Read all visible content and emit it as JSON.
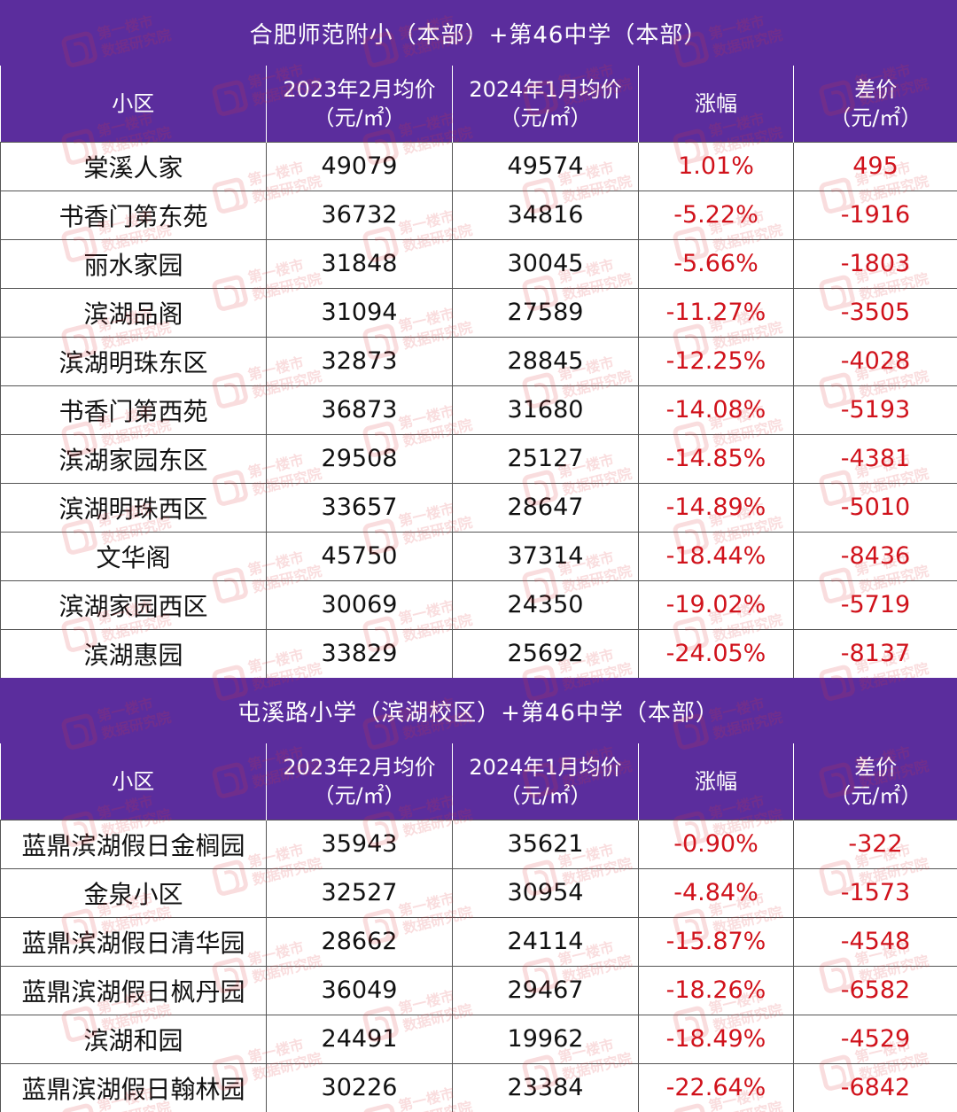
{
  "watermark": {
    "line1": "第一楼市",
    "line2": "数据研究院"
  },
  "colors": {
    "header_bg": "#5b2d9d",
    "decline_text": "#d0121b"
  },
  "columns": [
    {
      "line1": "小区",
      "line2": ""
    },
    {
      "line1": "2023年2月均价",
      "line2": "（元/㎡）"
    },
    {
      "line1": "2024年1月均价",
      "line2": "（元/㎡）"
    },
    {
      "line1": "涨幅",
      "line2": ""
    },
    {
      "line1": "差价",
      "line2": "（元/㎡）"
    }
  ],
  "sections": [
    {
      "title": "合肥师范附小（本部）+第46中学（本部）",
      "rows": [
        {
          "name": "棠溪人家",
          "feb2023": "49079",
          "jan2024": "49574",
          "change": "1.01%",
          "diff": "495"
        },
        {
          "name": "书香门第东苑",
          "feb2023": "36732",
          "jan2024": "34816",
          "change": "-5.22%",
          "diff": "-1916"
        },
        {
          "name": "丽水家园",
          "feb2023": "31848",
          "jan2024": "30045",
          "change": "-5.66%",
          "diff": "-1803"
        },
        {
          "name": "滨湖品阁",
          "feb2023": "31094",
          "jan2024": "27589",
          "change": "-11.27%",
          "diff": "-3505"
        },
        {
          "name": "滨湖明珠东区",
          "feb2023": "32873",
          "jan2024": "28845",
          "change": "-12.25%",
          "diff": "-4028"
        },
        {
          "name": "书香门第西苑",
          "feb2023": "36873",
          "jan2024": "31680",
          "change": "-14.08%",
          "diff": "-5193"
        },
        {
          "name": "滨湖家园东区",
          "feb2023": "29508",
          "jan2024": "25127",
          "change": "-14.85%",
          "diff": "-4381"
        },
        {
          "name": "滨湖明珠西区",
          "feb2023": "33657",
          "jan2024": "28647",
          "change": "-14.89%",
          "diff": "-5010"
        },
        {
          "name": "文华阁",
          "feb2023": "45750",
          "jan2024": "37314",
          "change": "-18.44%",
          "diff": "-8436"
        },
        {
          "name": "滨湖家园西区",
          "feb2023": "30069",
          "jan2024": "24350",
          "change": "-19.02%",
          "diff": "-5719"
        },
        {
          "name": "滨湖惠园",
          "feb2023": "33829",
          "jan2024": "25692",
          "change": "-24.05%",
          "diff": "-8137"
        }
      ]
    },
    {
      "title": "屯溪路小学（滨湖校区）+第46中学（本部）",
      "rows": [
        {
          "name": "蓝鼎滨湖假日金榈园",
          "feb2023": "35943",
          "jan2024": "35621",
          "change": "-0.90%",
          "diff": "-322"
        },
        {
          "name": "金泉小区",
          "feb2023": "32527",
          "jan2024": "30954",
          "change": "-4.84%",
          "diff": "-1573"
        },
        {
          "name": "蓝鼎滨湖假日清华园",
          "feb2023": "28662",
          "jan2024": "24114",
          "change": "-15.87%",
          "diff": "-4548"
        },
        {
          "name": "蓝鼎滨湖假日枫丹园",
          "feb2023": "36049",
          "jan2024": "29467",
          "change": "-18.26%",
          "diff": "-6582"
        },
        {
          "name": "滨湖和园",
          "feb2023": "24491",
          "jan2024": "19962",
          "change": "-18.49%",
          "diff": "-4529"
        },
        {
          "name": "蓝鼎滨湖假日翰林园",
          "feb2023": "30226",
          "jan2024": "23384",
          "change": "-22.64%",
          "diff": "-6842"
        }
      ]
    }
  ]
}
